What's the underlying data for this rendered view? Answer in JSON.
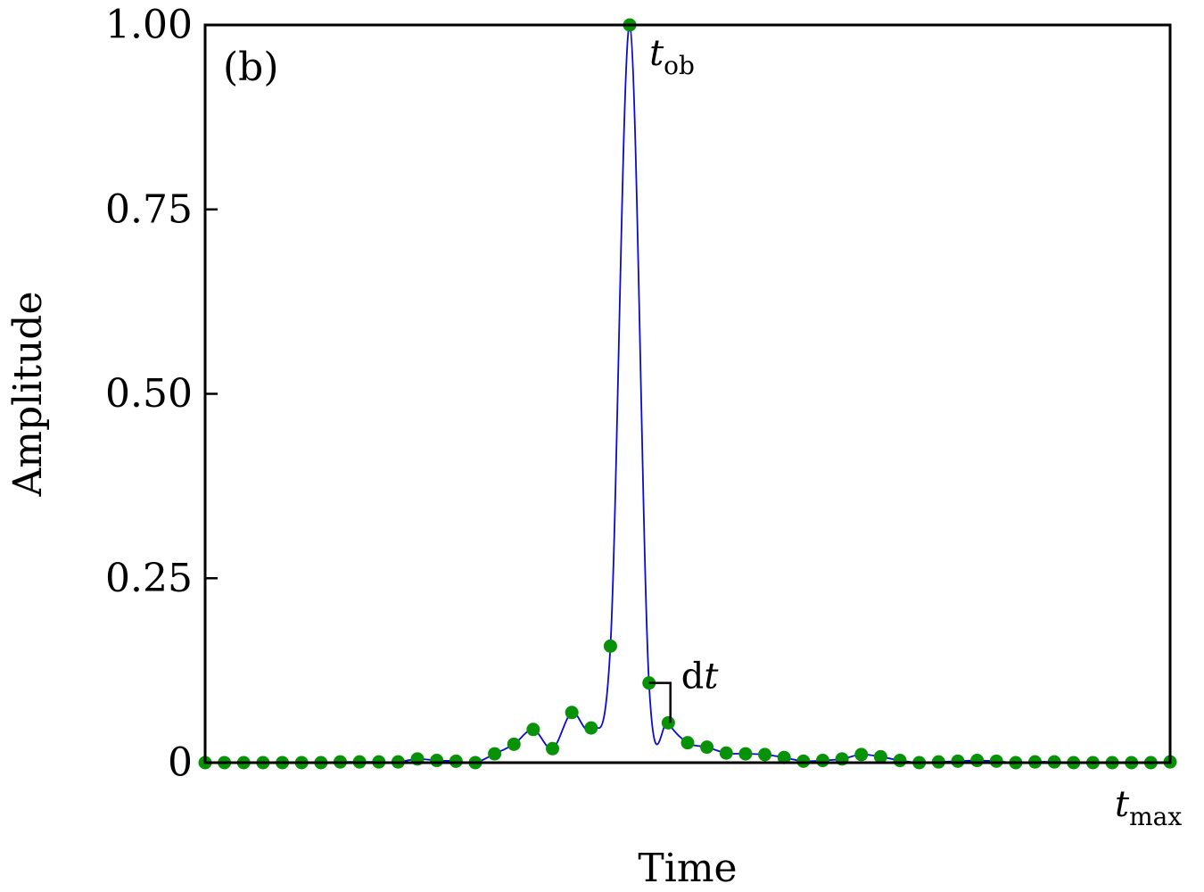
{
  "chart_data": {
    "type": "line",
    "panel_label": "(b)",
    "xlabel": "Time",
    "ylabel": "Amplitude",
    "ylim": [
      0,
      1.0
    ],
    "yticks": [
      0,
      0.25,
      0.5,
      0.75,
      1.0
    ],
    "ytick_labels": [
      "0",
      "0.25",
      "0.50",
      "0.75",
      "1.00"
    ],
    "xlim": [
      0,
      50
    ],
    "grid": false,
    "colors": {
      "line": "#0a0ad6",
      "points": "#079207",
      "axes": "#000000"
    },
    "annotations": [
      {
        "name": "t-ob",
        "base": "t",
        "sub": "ob"
      },
      {
        "name": "t-max",
        "base": "t",
        "sub": "max"
      },
      {
        "name": "dt",
        "roman": "d",
        "italic": "t"
      }
    ],
    "series": [
      {
        "x": [
          0,
          1,
          2,
          3,
          4,
          5,
          6,
          7,
          8,
          9,
          10,
          11,
          12,
          13,
          14,
          15,
          16,
          17,
          18,
          19,
          20,
          21,
          22,
          23,
          24,
          25,
          26,
          27,
          28,
          29,
          30,
          31,
          32,
          33,
          34,
          35,
          36,
          37,
          38,
          39,
          40,
          41,
          42,
          43,
          44,
          45,
          46,
          47,
          48,
          49,
          50
        ],
        "values": [
          0.0,
          0.0,
          0.0,
          0.0,
          0.0,
          0.0,
          0.0,
          0.001,
          0.001,
          0.001,
          0.001,
          0.005,
          0.003,
          0.002,
          0.0,
          0.012,
          0.025,
          0.045,
          0.019,
          0.068,
          0.047,
          0.158,
          1.0,
          0.108,
          0.054,
          0.027,
          0.021,
          0.013,
          0.012,
          0.011,
          0.007,
          0.002,
          0.003,
          0.005,
          0.011,
          0.008,
          0.003,
          0.0,
          0.001,
          0.002,
          0.003,
          0.002,
          0.0,
          0.001,
          0.001,
          0.0,
          0.0,
          0.0,
          0.0,
          0.0,
          0.001
        ]
      }
    ]
  }
}
